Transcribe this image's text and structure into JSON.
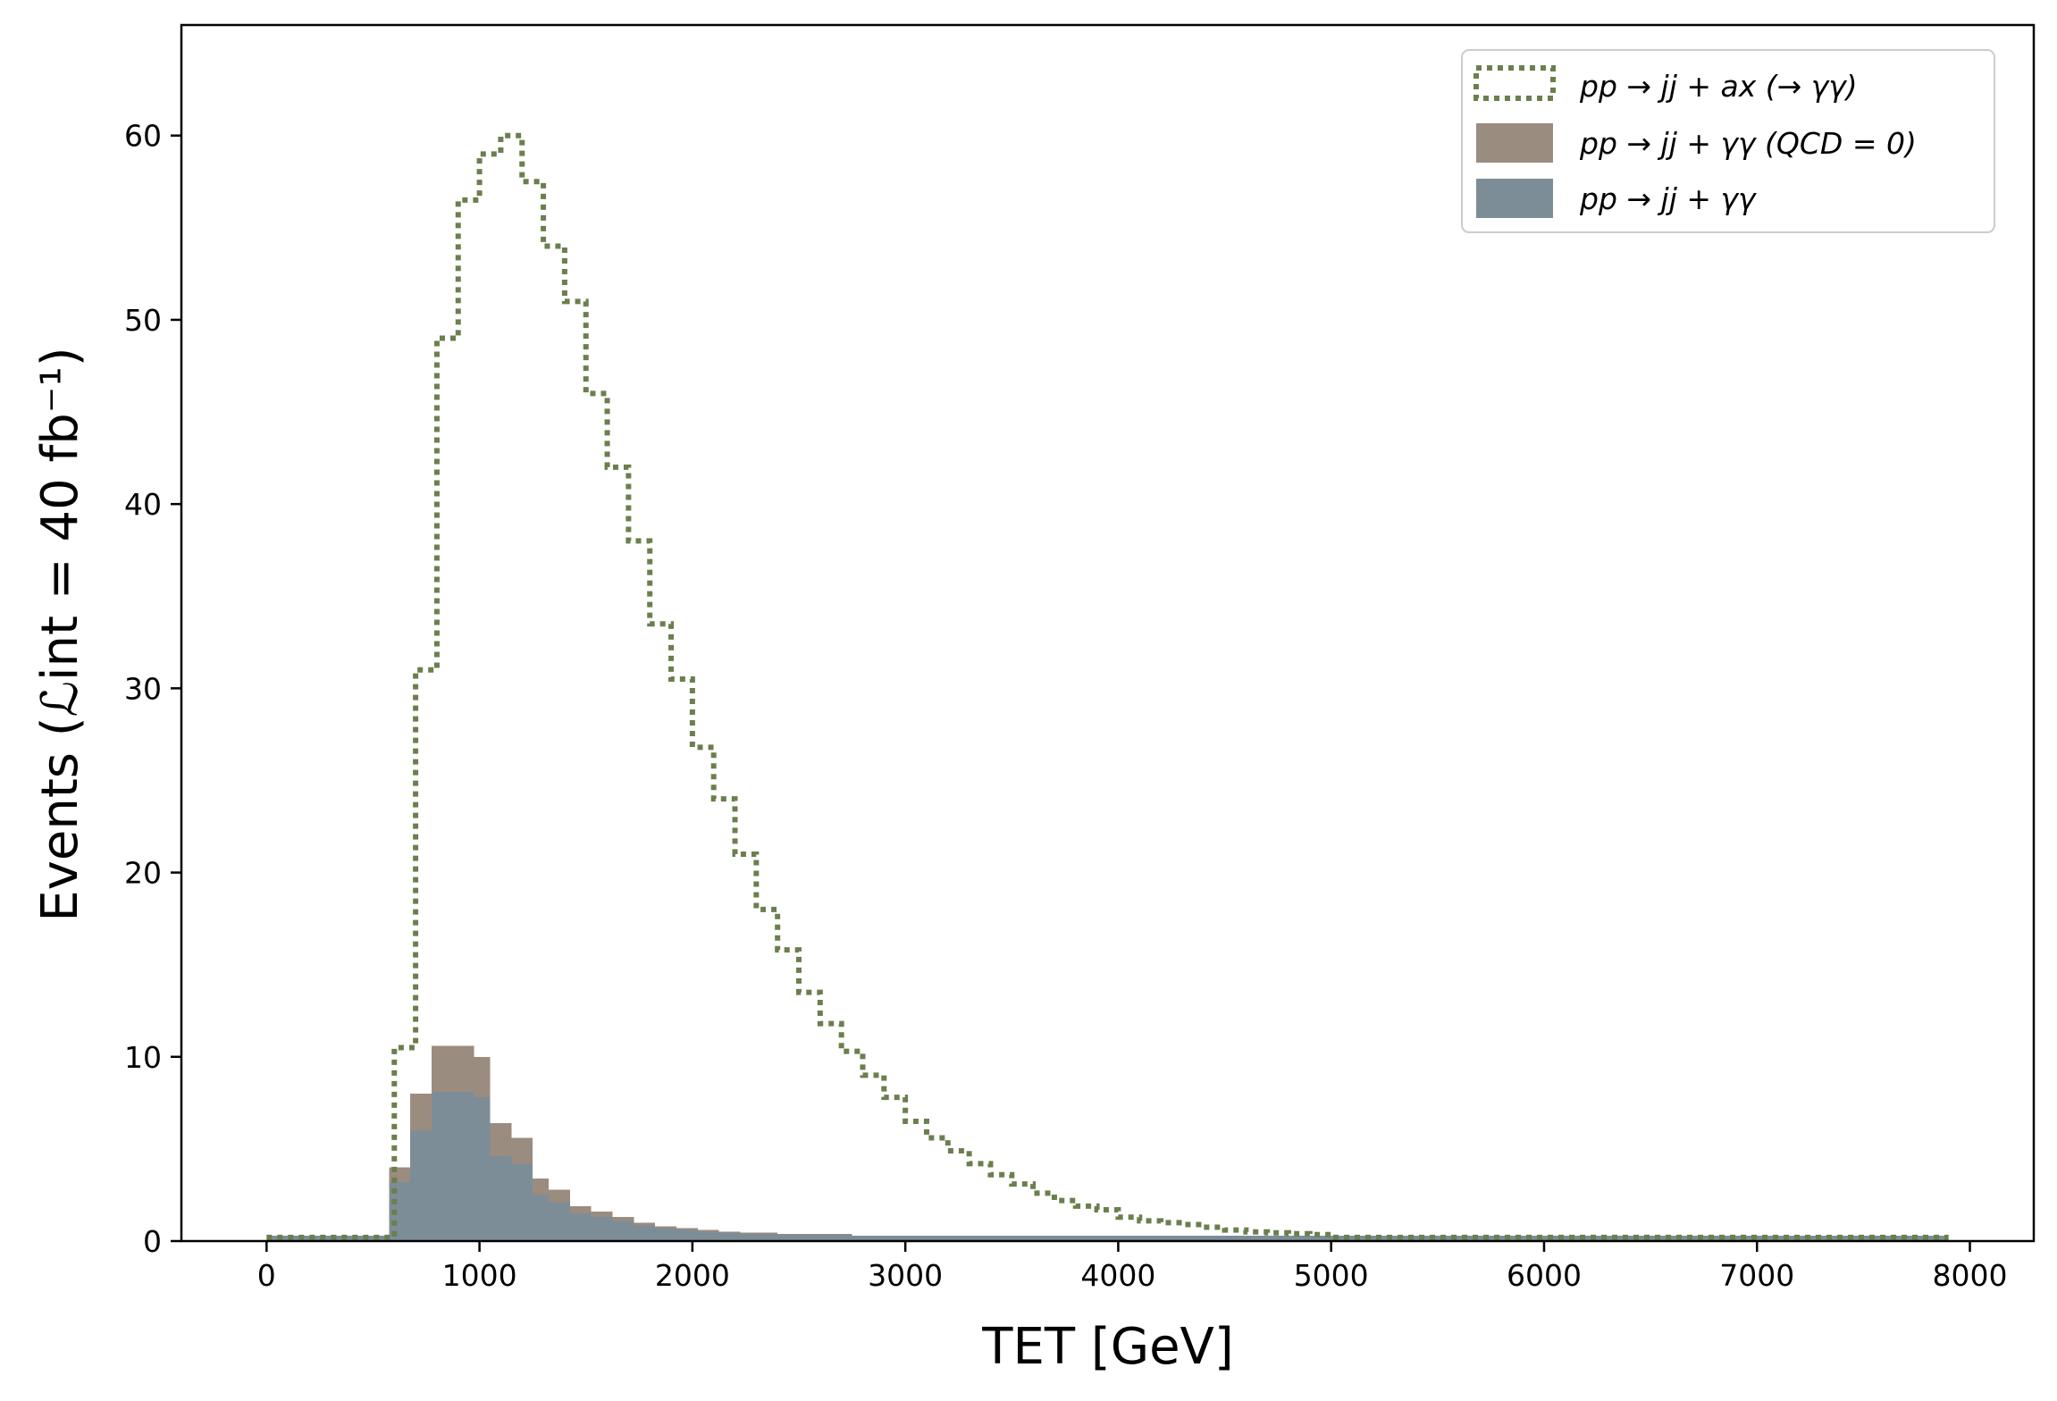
{
  "chart_data": {
    "type": "histogram",
    "title": "",
    "xlabel": "TET [GeV]",
    "ylabel": "Events (ℒint = 40 fb⁻¹)",
    "xlim": [
      -400,
      8300
    ],
    "ylim": [
      0,
      66
    ],
    "xticks": [
      0,
      1000,
      2000,
      3000,
      4000,
      5000,
      6000,
      7000,
      8000
    ],
    "yticks": [
      0,
      10,
      20,
      30,
      40,
      50,
      60
    ],
    "grid": false,
    "legend_position": "top-right",
    "series": [
      {
        "name": "pp → jj + ax (→ γγ)",
        "style": "step-dotted",
        "color": "#6b7f4e",
        "bins": [
          [
            0,
            600,
            0.2
          ],
          [
            600,
            700,
            10.5
          ],
          [
            700,
            800,
            31.0
          ],
          [
            800,
            900,
            49.0
          ],
          [
            900,
            1000,
            56.5
          ],
          [
            1000,
            1100,
            59.0
          ],
          [
            1100,
            1200,
            60.0
          ],
          [
            1200,
            1300,
            57.5
          ],
          [
            1300,
            1400,
            54.0
          ],
          [
            1400,
            1500,
            51.0
          ],
          [
            1500,
            1600,
            46.0
          ],
          [
            1600,
            1700,
            42.0
          ],
          [
            1700,
            1800,
            38.0
          ],
          [
            1800,
            1900,
            33.5
          ],
          [
            1900,
            2000,
            30.5
          ],
          [
            2000,
            2100,
            26.8
          ],
          [
            2100,
            2200,
            24.0
          ],
          [
            2200,
            2300,
            21.0
          ],
          [
            2300,
            2400,
            18.0
          ],
          [
            2400,
            2500,
            15.8
          ],
          [
            2500,
            2600,
            13.5
          ],
          [
            2600,
            2700,
            11.8
          ],
          [
            2700,
            2800,
            10.3
          ],
          [
            2800,
            2900,
            9.0
          ],
          [
            2900,
            3000,
            7.8
          ],
          [
            3000,
            3100,
            6.5
          ],
          [
            3100,
            3200,
            5.6
          ],
          [
            3200,
            3300,
            4.9
          ],
          [
            3300,
            3400,
            4.2
          ],
          [
            3400,
            3500,
            3.6
          ],
          [
            3500,
            3600,
            3.1
          ],
          [
            3600,
            3700,
            2.6
          ],
          [
            3700,
            3800,
            2.2
          ],
          [
            3800,
            3900,
            1.9
          ],
          [
            3900,
            4000,
            1.7
          ],
          [
            4000,
            4100,
            1.3
          ],
          [
            4100,
            4200,
            1.1
          ],
          [
            4200,
            4300,
            1.0
          ],
          [
            4300,
            4400,
            0.9
          ],
          [
            4400,
            4500,
            0.75
          ],
          [
            4500,
            4600,
            0.6
          ],
          [
            4600,
            4700,
            0.5
          ],
          [
            4700,
            4800,
            0.45
          ],
          [
            4800,
            4900,
            0.4
          ],
          [
            4900,
            5000,
            0.35
          ],
          [
            5000,
            7900,
            0.2
          ]
        ]
      },
      {
        "name": "pp → jj + γγ (QCD = 0)",
        "style": "filled",
        "color": "#9b8c80",
        "bins": [
          [
            0,
            575,
            0.3
          ],
          [
            575,
            675,
            4.0
          ],
          [
            675,
            775,
            8.0
          ],
          [
            775,
            875,
            10.6
          ],
          [
            875,
            975,
            10.6
          ],
          [
            975,
            1050,
            10.0
          ],
          [
            1050,
            1150,
            6.4
          ],
          [
            1150,
            1250,
            5.6
          ],
          [
            1250,
            1325,
            3.4
          ],
          [
            1325,
            1425,
            2.8
          ],
          [
            1425,
            1525,
            1.9
          ],
          [
            1525,
            1625,
            1.6
          ],
          [
            1625,
            1725,
            1.3
          ],
          [
            1725,
            1825,
            1.0
          ],
          [
            1825,
            1925,
            0.8
          ],
          [
            1925,
            2025,
            0.7
          ],
          [
            2025,
            2125,
            0.6
          ],
          [
            2125,
            2225,
            0.5
          ],
          [
            2225,
            2400,
            0.45
          ],
          [
            2400,
            2750,
            0.4
          ],
          [
            2750,
            7900,
            0.3
          ]
        ]
      },
      {
        "name": "pp → jj + γγ",
        "style": "filled",
        "color": "#7d8d97",
        "bins": [
          [
            0,
            575,
            0.3
          ],
          [
            575,
            675,
            3.2
          ],
          [
            675,
            775,
            6.0
          ],
          [
            775,
            875,
            8.1
          ],
          [
            875,
            975,
            8.1
          ],
          [
            975,
            1050,
            7.8
          ],
          [
            1050,
            1150,
            4.6
          ],
          [
            1150,
            1250,
            4.2
          ],
          [
            1250,
            1325,
            2.5
          ],
          [
            1325,
            1425,
            2.1
          ],
          [
            1425,
            1525,
            1.5
          ],
          [
            1525,
            1625,
            1.3
          ],
          [
            1625,
            1725,
            1.1
          ],
          [
            1725,
            1825,
            0.85
          ],
          [
            1825,
            1925,
            0.7
          ],
          [
            1925,
            2025,
            0.6
          ],
          [
            2025,
            2125,
            0.5
          ],
          [
            2125,
            2225,
            0.45
          ],
          [
            2225,
            2400,
            0.4
          ],
          [
            2400,
            2750,
            0.35
          ],
          [
            2750,
            7900,
            0.3
          ]
        ]
      }
    ]
  }
}
